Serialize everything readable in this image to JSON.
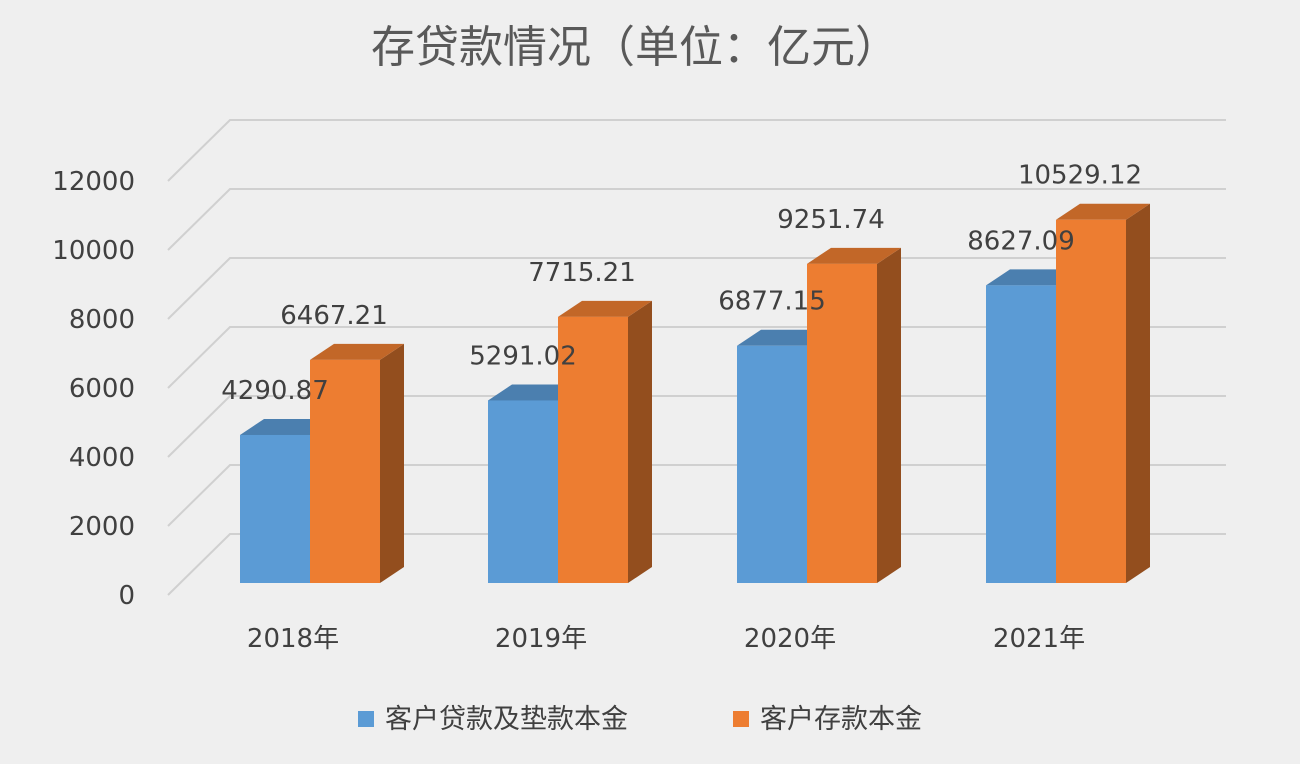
{
  "chart_data": {
    "type": "bar",
    "title": "存贷款情况（单位：亿元）",
    "categories": [
      "2018年",
      "2019年",
      "2020年",
      "2021年"
    ],
    "series": [
      {
        "name": "客户贷款及垫款本金",
        "values": [
          4290.87,
          5291.02,
          6877.15,
          8627.09
        ],
        "labels": [
          "4290.87",
          "5291.02",
          "6877.15",
          "8627.09"
        ],
        "color": "#5b9bd5"
      },
      {
        "name": "客户存款本金",
        "values": [
          6467.21,
          7715.21,
          9251.74,
          10529.12
        ],
        "labels": [
          "6467.21",
          "7715.21",
          "9251.74",
          "10529.12"
        ],
        "color": "#ed7d31"
      }
    ],
    "yticks": [
      "0",
      "2000",
      "4000",
      "6000",
      "8000",
      "10000",
      "12000"
    ],
    "ylim": [
      0,
      12000
    ],
    "xlabel": "",
    "ylabel": "",
    "grid": true,
    "legend_position": "bottom",
    "style": "3d-column"
  }
}
